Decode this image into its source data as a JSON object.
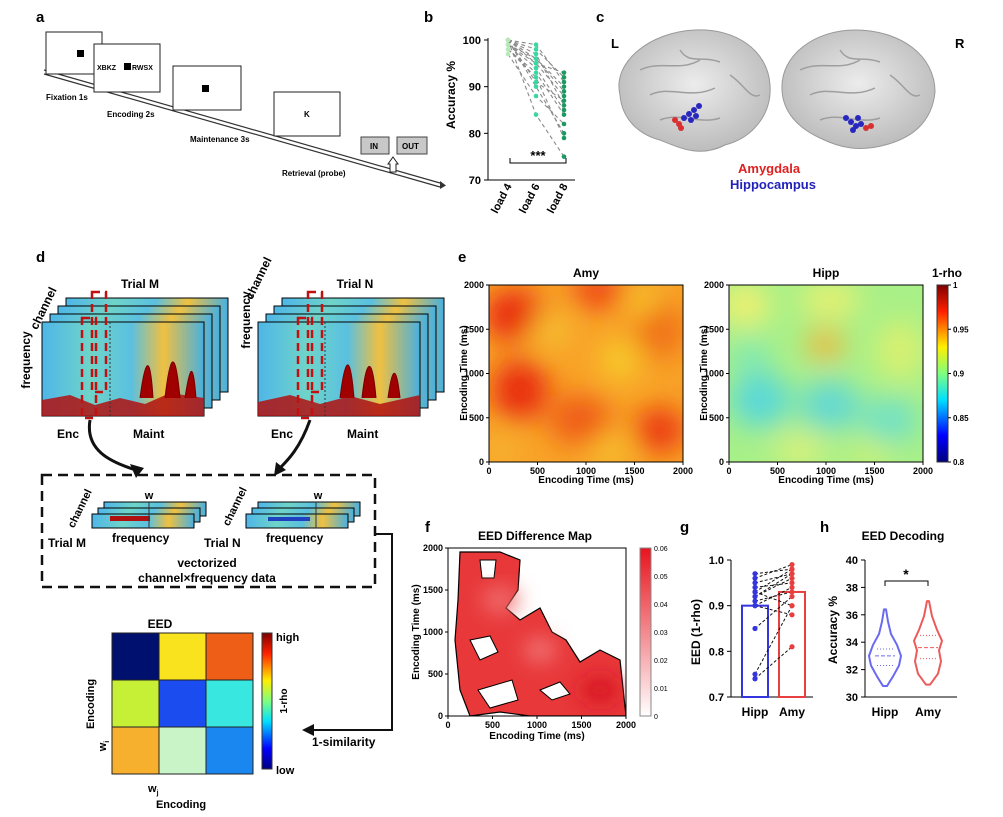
{
  "panels": {
    "a": "a",
    "b": "b",
    "c": "c",
    "d": "d",
    "e": "e",
    "f": "f",
    "g": "g",
    "h": "h"
  },
  "panel_a": {
    "encoding_text": "XBKZ",
    "encoding_text2": "RWSX",
    "probe_letter": "K",
    "labels": [
      "Fixation 1s",
      "Encoding 2s",
      "Maintenance 3s",
      "Retrieval (probe)"
    ],
    "buttons": {
      "in": "IN",
      "out": "OUT"
    }
  },
  "panel_c": {
    "left": "L",
    "right": "R",
    "amygdala": "Amygdala",
    "hippocampus": "Hippocampus",
    "colors": {
      "amygdala": "#e02020",
      "hippocampus": "#2222bb"
    }
  },
  "panel_d": {
    "trial_m": "Trial M",
    "trial_n": "Trial N",
    "channel": "channel",
    "frequency": "frequency",
    "enc": "Enc",
    "maint": "Maint",
    "w": "w",
    "vectorized_line1": "vectorized",
    "vectorized_line2": "channel×frequency data",
    "eed_title": "EED",
    "high": "high",
    "low": "low",
    "cbar_label": "1-rho",
    "similarity": "1-similarity",
    "ylabel": "Encoding",
    "xlabel": "Encoding",
    "wi": "w",
    "wi_sub": "i",
    "wj": "w",
    "wj_sub": "j",
    "matrix_colors": [
      "#00106e",
      "#f9e21e",
      "#ef5e17",
      "#c6f035",
      "#1a4cf0",
      "#38e8e0",
      "#f6b02e",
      "#c8f4c8",
      "#1a86f0"
    ]
  },
  "chart_data": [
    {
      "type": "line",
      "panel": "b",
      "ylabel": "Accuracy %",
      "categories": [
        "load 4",
        "load 6",
        "load 8"
      ],
      "ylim": [
        70,
        100
      ],
      "yticks": [
        70,
        80,
        90,
        100
      ],
      "significance": "***",
      "subjects": [
        [
          100,
          98,
          92
        ],
        [
          100,
          96,
          89
        ],
        [
          99,
          95,
          88
        ],
        [
          100,
          97,
          86
        ],
        [
          98,
          93,
          84
        ],
        [
          100,
          90,
          80
        ],
        [
          99,
          94,
          85
        ],
        [
          100,
          95,
          93
        ],
        [
          97,
          88,
          82
        ],
        [
          100,
          99,
          91
        ],
        [
          98,
          92,
          79
        ],
        [
          100,
          84,
          75
        ],
        [
          99,
          96,
          90
        ],
        [
          100,
          91,
          87
        ]
      ]
    },
    {
      "type": "heatmap",
      "panel": "e",
      "title": "Amy",
      "xlabel": "Encoding Time (ms)",
      "ylabel": "Encoding Time (ms)",
      "xticks": [
        0,
        500,
        1000,
        1500,
        2000
      ],
      "yticks": [
        0,
        500,
        1000,
        1500,
        2000
      ],
      "range": [
        0,
        2000
      ]
    },
    {
      "type": "heatmap",
      "panel": "e",
      "title": "Hipp",
      "xlabel": "Encoding Time (ms)",
      "ylabel": "Encoding Time (ms)",
      "xticks": [
        0,
        500,
        1000,
        1500,
        2000
      ],
      "yticks": [
        0,
        500,
        1000,
        1500,
        2000
      ],
      "range": [
        0,
        2000
      ],
      "colorbar": {
        "label": "1-rho",
        "ticks": [
          0.8,
          0.85,
          0.9,
          0.95,
          1
        ],
        "tick_labels": [
          "0.8",
          "0.85",
          "0.9",
          "0.95",
          "1"
        ]
      }
    },
    {
      "type": "heatmap",
      "panel": "f",
      "title": "EED Difference Map",
      "xlabel": "Encoding Time (ms)",
      "ylabel": "Encoding Time (ms)",
      "xticks": [
        0,
        500,
        1000,
        1500,
        2000
      ],
      "yticks": [
        0,
        500,
        1000,
        1500,
        2000
      ],
      "colorbar": {
        "ticks": [
          0,
          0.01,
          0.02,
          0.03,
          0.04,
          0.05,
          0.06
        ],
        "tick_labels": [
          "0",
          "0.01",
          "0.02",
          "0.03",
          "0.04",
          "0.05",
          "0.06"
        ]
      }
    },
    {
      "type": "bar",
      "panel": "g",
      "ylabel": "EED (1-rho)",
      "categories": [
        "Hipp",
        "Amy"
      ],
      "values": [
        0.9,
        0.93
      ],
      "ylim": [
        0.7,
        1.0
      ],
      "yticks": [
        "0.7",
        "0.8",
        "0.9",
        "1.0"
      ],
      "colors": [
        "#3535e0",
        "#e84040"
      ],
      "pairs": [
        [
          0.95,
          0.97
        ],
        [
          0.93,
          0.98
        ],
        [
          0.92,
          0.96
        ],
        [
          0.96,
          0.99
        ],
        [
          0.94,
          0.95
        ],
        [
          0.91,
          0.93
        ],
        [
          0.93,
          0.9
        ],
        [
          0.9,
          0.94
        ],
        [
          0.92,
          0.97
        ],
        [
          0.75,
          0.9
        ],
        [
          0.74,
          0.81
        ],
        [
          0.85,
          0.92
        ],
        [
          0.97,
          0.98
        ],
        [
          0.9,
          0.88
        ]
      ]
    },
    {
      "type": "violin",
      "panel": "h",
      "title": "EED Decoding",
      "ylabel": "Accuracy %",
      "categories": [
        "Hipp",
        "Amy"
      ],
      "ylim": [
        30,
        40
      ],
      "yticks": [
        30,
        32,
        34,
        36,
        38,
        40
      ],
      "medians": [
        33,
        33.6
      ],
      "quartiles": [
        [
          32.3,
          33.5
        ],
        [
          32.8,
          34.5
        ]
      ],
      "colors": [
        "#6a6af0",
        "#ec5a5a"
      ],
      "significance": "*"
    }
  ]
}
